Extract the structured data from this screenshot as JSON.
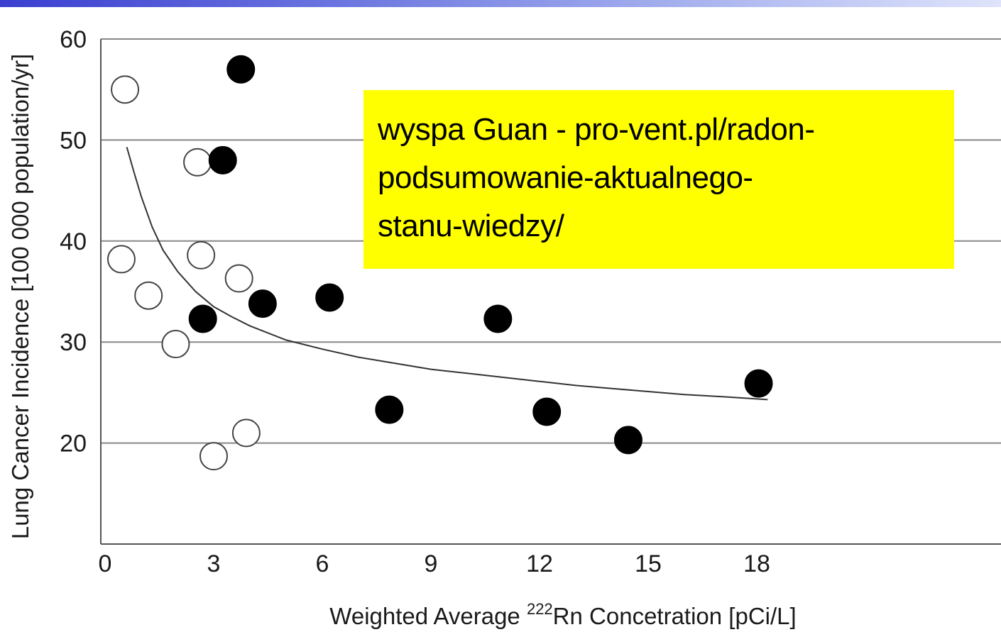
{
  "colors": {
    "accent_bar": "#4a50d6",
    "note_background": "#ffff00",
    "grid": "#888888",
    "axis": "#555555",
    "marker_filled": "#000000",
    "marker_open_stroke": "#444444"
  },
  "note": {
    "lines": [
      "wyspa Guan - pro-vent.pl/radon-",
      "podsumowanie-aktualnego-",
      "stanu-wiedzy/"
    ]
  },
  "chart_data": {
    "type": "scatter",
    "title": "",
    "xlabel_prefix": "Weighted Average ",
    "xlabel_sup": "222",
    "xlabel_suffix": "Rn Concetration [pCi/L]",
    "ylabel": "Lung Cancer Incidence [100 000 population/yr]",
    "xlim": [
      0,
      19.5
    ],
    "ylim": [
      10,
      60
    ],
    "xticks": [
      0,
      3,
      6,
      9,
      12,
      15,
      18
    ],
    "yticks": [
      20,
      30,
      40,
      50,
      60
    ],
    "grid": "horizontal",
    "series": [
      {
        "marker": "open-circle",
        "points": [
          [
            0.55,
            55.0
          ],
          [
            0.45,
            38.2
          ],
          [
            1.2,
            34.6
          ],
          [
            1.95,
            29.8
          ],
          [
            2.55,
            47.8
          ],
          [
            2.65,
            38.6
          ],
          [
            3.0,
            18.7
          ],
          [
            3.7,
            36.3
          ],
          [
            3.9,
            21.0
          ]
        ]
      },
      {
        "marker": "filled-circle",
        "points": [
          [
            2.7,
            32.3
          ],
          [
            3.25,
            48.0
          ],
          [
            3.75,
            57.0
          ],
          [
            4.35,
            33.8
          ],
          [
            6.2,
            34.4
          ],
          [
            7.85,
            23.3
          ],
          [
            10.85,
            32.3
          ],
          [
            12.2,
            23.1
          ],
          [
            14.45,
            20.3
          ],
          [
            18.05,
            25.9
          ]
        ]
      },
      {
        "marker": "line",
        "points": [
          [
            0.6,
            49.3
          ],
          [
            0.8,
            46.8
          ],
          [
            1.0,
            44.4
          ],
          [
            1.3,
            41.4
          ],
          [
            1.6,
            39.1
          ],
          [
            2.0,
            37.0
          ],
          [
            2.5,
            35.0
          ],
          [
            3.0,
            33.5
          ],
          [
            3.5,
            32.5
          ],
          [
            4.0,
            31.6
          ],
          [
            5.0,
            30.2
          ],
          [
            6.0,
            29.3
          ],
          [
            7.0,
            28.5
          ],
          [
            8.0,
            27.9
          ],
          [
            9.0,
            27.3
          ],
          [
            10.0,
            26.9
          ],
          [
            11.0,
            26.5
          ],
          [
            12.0,
            26.1
          ],
          [
            13.0,
            25.7
          ],
          [
            14.0,
            25.4
          ],
          [
            15.0,
            25.1
          ],
          [
            16.0,
            24.8
          ],
          [
            17.0,
            24.6
          ],
          [
            18.3,
            24.3
          ]
        ]
      }
    ]
  }
}
